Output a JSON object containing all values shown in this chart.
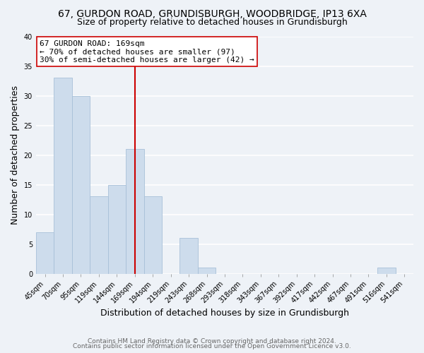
{
  "title": "67, GURDON ROAD, GRUNDISBURGH, WOODBRIDGE, IP13 6XA",
  "subtitle": "Size of property relative to detached houses in Grundisburgh",
  "xlabel": "Distribution of detached houses by size in Grundisburgh",
  "ylabel": "Number of detached properties",
  "bin_labels": [
    "45sqm",
    "70sqm",
    "95sqm",
    "119sqm",
    "144sqm",
    "169sqm",
    "194sqm",
    "219sqm",
    "243sqm",
    "268sqm",
    "293sqm",
    "318sqm",
    "343sqm",
    "367sqm",
    "392sqm",
    "417sqm",
    "442sqm",
    "467sqm",
    "491sqm",
    "516sqm",
    "541sqm"
  ],
  "bar_values": [
    7,
    33,
    30,
    13,
    15,
    21,
    13,
    0,
    6,
    1,
    0,
    0,
    0,
    0,
    0,
    0,
    0,
    0,
    0,
    1,
    0
  ],
  "bar_color": "#cddcec",
  "bar_edge_color": "#a8c0d8",
  "vline_x_index": 5,
  "vline_color": "#cc0000",
  "annotation_text": "67 GURDON ROAD: 169sqm\n← 70% of detached houses are smaller (97)\n30% of semi-detached houses are larger (42) →",
  "annotation_box_color": "#ffffff",
  "annotation_box_edge": "#cc0000",
  "ylim": [
    0,
    40
  ],
  "yticks": [
    0,
    5,
    10,
    15,
    20,
    25,
    30,
    35,
    40
  ],
  "footer_line1": "Contains HM Land Registry data © Crown copyright and database right 2024.",
  "footer_line2": "Contains public sector information licensed under the Open Government Licence v3.0.",
  "background_color": "#eef2f7",
  "grid_color": "#ffffff",
  "title_fontsize": 10,
  "subtitle_fontsize": 9,
  "axis_label_fontsize": 9,
  "tick_fontsize": 7,
  "annotation_fontsize": 8,
  "footer_fontsize": 6.5
}
